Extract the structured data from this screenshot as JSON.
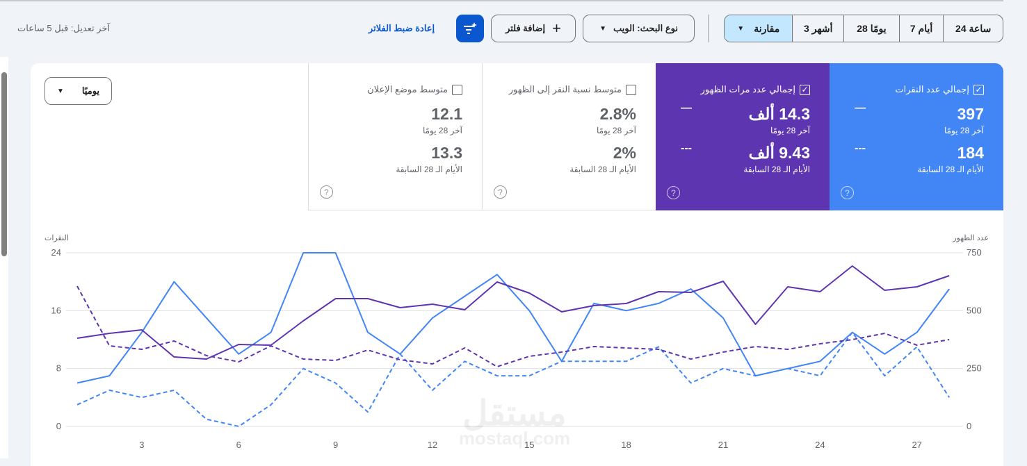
{
  "header": {
    "last_updated": "آخر تعديل: قبل 5 ساعات",
    "reset_filters": "إعادة ضبط الفلاتر",
    "add_filter": "إضافة فلتر",
    "search_type": "نوع البحث: الويب",
    "date_ranges": [
      "24 ساعة",
      "7 أيام",
      "28 يومًا",
      "3 أشهر"
    ],
    "compare": "مقارنة"
  },
  "granularity": "يوميًا",
  "metrics": [
    {
      "label": "إجمالي عدد النقرات",
      "checked": true,
      "current": "397",
      "current_label": "آخر 28 يومًا",
      "previous": "184",
      "previous_label": "الأيام الـ 28 السابقة",
      "color": "#4285f4"
    },
    {
      "label": "إجمالي عدد مرات الظهور",
      "checked": true,
      "current": "14.3 ألف",
      "current_label": "آخر 28 يومًا",
      "previous": "9.43 ألف",
      "previous_label": "الأيام الـ 28 السابقة",
      "color": "#5e35b1"
    },
    {
      "label": "متوسط نسبة النقر إلى الظهور",
      "checked": false,
      "current": "2.8%",
      "current_label": "آخر 28 يومًا",
      "previous": "2%",
      "previous_label": "الأيام الـ 28 السابقة"
    },
    {
      "label": "متوسط موضع الإعلان",
      "checked": false,
      "current": "12.1",
      "current_label": "آخر 28 يومًا",
      "previous": "13.3",
      "previous_label": "الأيام الـ 28 السابقة"
    }
  ],
  "watermark": "مستقل mostaql.com",
  "chart_data": {
    "type": "line",
    "left_axis": {
      "label": "النقرات",
      "ticks": [
        "0",
        "8",
        "16",
        "24"
      ],
      "range": [
        0,
        24
      ]
    },
    "right_axis": {
      "label": "عدد الظهور",
      "ticks": [
        "0",
        "250",
        "500",
        "750"
      ],
      "range": [
        0,
        750
      ]
    },
    "x_ticks": [
      "3",
      "6",
      "9",
      "12",
      "15",
      "18",
      "21",
      "24",
      "27"
    ],
    "x": [
      1,
      2,
      3,
      4,
      5,
      6,
      7,
      8,
      9,
      10,
      11,
      12,
      13,
      14,
      15,
      16,
      17,
      18,
      19,
      20,
      21,
      22,
      23,
      24,
      25,
      26,
      27,
      28
    ],
    "series": [
      {
        "name": "clicks-current",
        "axis": "left",
        "color": "#4285f4",
        "dashed": false,
        "values": [
          6,
          7,
          13,
          20,
          15,
          10,
          13,
          24,
          24,
          13,
          10,
          15,
          18,
          21,
          16,
          9,
          17,
          16,
          17,
          19,
          15,
          7,
          8,
          9,
          13,
          10,
          13,
          19
        ]
      },
      {
        "name": "clicks-previous",
        "axis": "left",
        "color": "#4285f4",
        "dashed": true,
        "values": [
          3,
          5,
          4,
          5,
          1,
          0,
          3,
          8,
          6,
          2,
          10,
          5,
          9,
          7,
          7,
          9,
          9,
          9,
          11,
          6,
          8,
          7,
          8,
          7,
          13,
          7,
          11,
          4
        ]
      },
      {
        "name": "impressions-current",
        "axis": "right",
        "color": "#5e35b1",
        "dashed": false,
        "values": [
          381,
          402,
          417,
          300,
          291,
          354,
          351,
          456,
          552,
          552,
          513,
          528,
          504,
          624,
          576,
          495,
          522,
          531,
          582,
          579,
          627,
          441,
          603,
          582,
          693,
          588,
          603,
          651
        ]
      },
      {
        "name": "impressions-previous",
        "axis": "right",
        "color": "#5e35b1",
        "dashed": true,
        "values": [
          606,
          348,
          333,
          369,
          306,
          279,
          348,
          291,
          285,
          330,
          288,
          270,
          339,
          258,
          303,
          321,
          345,
          339,
          333,
          291,
          321,
          345,
          333,
          357,
          375,
          402,
          351,
          375
        ]
      }
    ]
  }
}
